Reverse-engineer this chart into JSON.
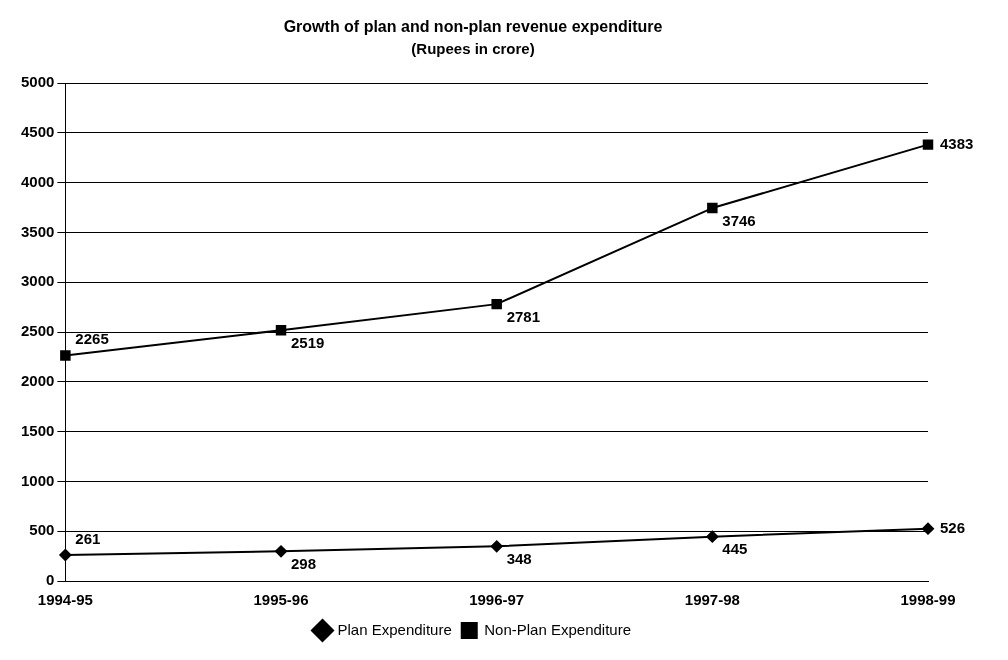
{
  "chart_data": {
    "type": "line",
    "title": "Growth of plan and non-plan revenue expenditure",
    "subtitle": "(Rupees in crore)",
    "categories": [
      "1994-95",
      "1995-96",
      "1996-97",
      "1997-98",
      "1998-99"
    ],
    "series": [
      {
        "name": "Plan Expenditure",
        "color": "#000000",
        "marker": "diamond",
        "values": [
          261,
          298,
          348,
          445,
          526
        ]
      },
      {
        "name": "Non-Plan Expenditure",
        "color": "#000000",
        "marker": "square",
        "values": [
          2265,
          2519,
          2781,
          3746,
          4383
        ]
      }
    ],
    "ylim": [
      0,
      5000
    ],
    "yticks": [
      0,
      500,
      1000,
      1500,
      2000,
      2500,
      3000,
      3500,
      4000,
      4500,
      5000
    ],
    "grid": "y",
    "legend": "bottom",
    "data_labels": true,
    "line_style": "solid"
  }
}
